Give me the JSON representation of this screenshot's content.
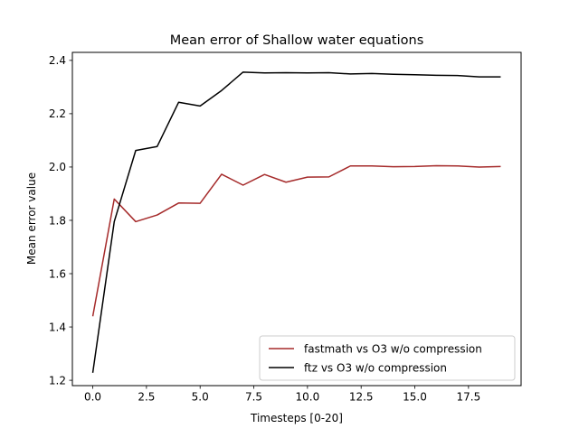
{
  "chart_data": {
    "type": "line",
    "title": "Mean error of Shallow water equations",
    "xlabel": "Timesteps [0-20]",
    "ylabel": "Mean error value",
    "xlim": [
      -0.95,
      19.95
    ],
    "ylim": [
      1.18,
      2.43
    ],
    "xticks": [
      0,
      2.5,
      5,
      7.5,
      10,
      12.5,
      15,
      17.5
    ],
    "xtick_labels": [
      "0.0",
      "2.5",
      "5.0",
      "7.5",
      "10.0",
      "12.5",
      "15.0",
      "17.5"
    ],
    "yticks": [
      1.2,
      1.4,
      1.6,
      1.8,
      2.0,
      2.2,
      2.4
    ],
    "ytick_labels": [
      "1.2",
      "1.4",
      "1.6",
      "1.8",
      "2.0",
      "2.2",
      "2.4"
    ],
    "grid": false,
    "legend_position": "bottom-right",
    "x": [
      0,
      1,
      2,
      3,
      4,
      5,
      6,
      7,
      8,
      9,
      10,
      11,
      12,
      13,
      14,
      15,
      16,
      17,
      18,
      19
    ],
    "series": [
      {
        "name": "fastmath vs O3 w/o compression",
        "color": "#a52a2a",
        "values": [
          1.44,
          1.88,
          1.795,
          1.82,
          1.865,
          1.864,
          1.973,
          1.932,
          1.972,
          1.943,
          1.962,
          1.963,
          2.004,
          2.004,
          2.001,
          2.002,
          2.005,
          2.004,
          2.0,
          2.002
        ]
      },
      {
        "name": "ftz vs O3 w/o compression",
        "color": "#000000",
        "values": [
          1.228,
          1.795,
          2.062,
          2.077,
          2.243,
          2.229,
          2.287,
          2.356,
          2.353,
          2.354,
          2.353,
          2.354,
          2.349,
          2.351,
          2.348,
          2.346,
          2.344,
          2.343,
          2.338,
          2.338
        ]
      }
    ]
  }
}
